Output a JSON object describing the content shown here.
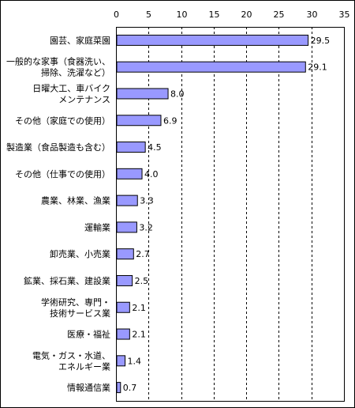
{
  "chart_data": {
    "type": "bar",
    "orientation": "horizontal",
    "title": "",
    "xlabel": "",
    "ylabel": "",
    "xlim": [
      0,
      35
    ],
    "x_ticks": [
      "0",
      "5",
      "10",
      "15",
      "20",
      "25",
      "30",
      "35"
    ],
    "gridlines": "vertical-dashed",
    "legend": "none",
    "bar_color": "#9999ff",
    "categories": [
      [
        "園芸、家庭菜園"
      ],
      [
        "一般的な家事（食器洗い、",
        "掃除、洗濯など）"
      ],
      [
        "日曜大工、車バイク",
        "メンテナンス"
      ],
      [
        "その他（家庭での使用）"
      ],
      [
        "製造業（食品製造も含む）"
      ],
      [
        "その他（仕事での使用）"
      ],
      [
        "農業、林業、漁業"
      ],
      [
        "運輸業"
      ],
      [
        "卸売業、小売業"
      ],
      [
        "鉱業、採石業、建設業"
      ],
      [
        "学術研究、専門・",
        "技術サービス業"
      ],
      [
        "医療・福祉"
      ],
      [
        "電気・ガス・水道、",
        "エネルギー業"
      ],
      [
        "情報通信業"
      ]
    ],
    "values": [
      29.5,
      29.1,
      8.0,
      6.9,
      4.5,
      4.0,
      3.3,
      3.2,
      2.7,
      2.5,
      2.1,
      2.1,
      1.4,
      0.7
    ],
    "value_labels": [
      "29.5",
      "29.1",
      "8.0",
      "6.9",
      "4.5",
      "4.0",
      "3.3",
      "3.2",
      "2.7",
      "2.5",
      "2.1",
      "2.1",
      "1.4",
      "0.7"
    ]
  }
}
